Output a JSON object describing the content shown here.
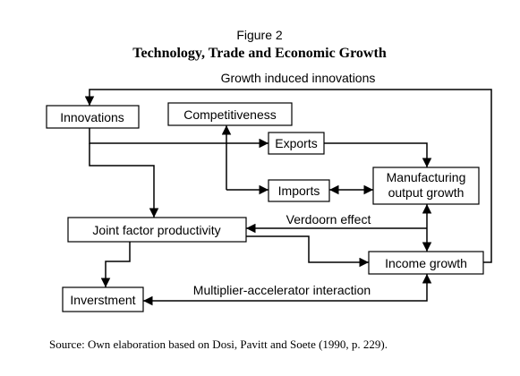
{
  "header": {
    "figure": "Figure 2",
    "title": "Technology, Trade and Economic Growth"
  },
  "nodes": [
    {
      "label": "Innovations"
    },
    {
      "label": "Competitiveness"
    },
    {
      "label": "Exports"
    },
    {
      "label": "Imports"
    },
    {
      "label": "Manufacturing output growth"
    },
    {
      "label": "Joint factor productivity"
    },
    {
      "label": "Income growth"
    },
    {
      "label": "Inverstment"
    }
  ],
  "edge_labels": [
    "Growth induced innovations",
    "Verdoorn effect",
    "Multiplier-accelerator interaction"
  ],
  "footer": {
    "source": "Source: Own elaboration based on Dosi, Pavitt and Soete (1990, p. 229)."
  }
}
